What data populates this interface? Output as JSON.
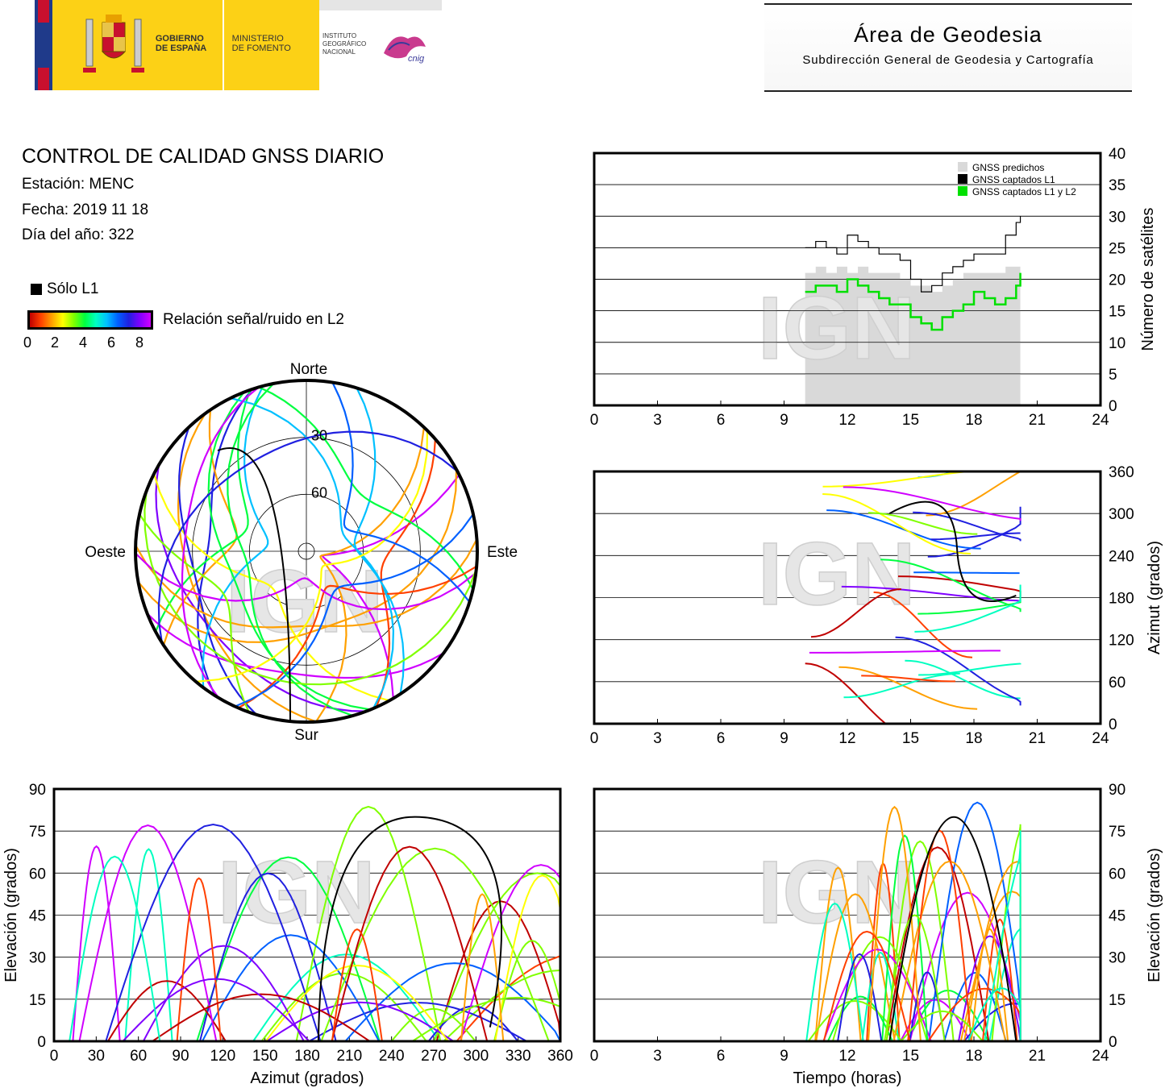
{
  "header": {
    "gov_line1": "GOBIERNO",
    "gov_line2": "DE ESPAÑA",
    "ministry_line1": "MINISTERIO",
    "ministry_line2": "DE FOMENTO",
    "ign_line1": "INSTITUTO",
    "ign_line2": "GEOGRÁFICO",
    "ign_line3": "NACIONAL",
    "cnig": "cnig",
    "area_title": "Área de Geodesia",
    "area_subtitle": "Subdirección General de Geodesia y Cartografía"
  },
  "report": {
    "title": "CONTROL DE CALIDAD GNSS DIARIO",
    "station": "Estación: MENC",
    "date": "Fecha: 2019 11 18",
    "doy": "Día del año: 322",
    "legend_l1": "Sólo L1",
    "colorbar_label": "Relación señal/ruido en L2",
    "colorbar_ticks": [
      "0",
      "2",
      "4",
      "6",
      "8"
    ]
  },
  "watermark": "IGN",
  "colors": {
    "predicted": "#d9d9d9",
    "l1": "#000000",
    "l1l2": "#00e000",
    "snr_scale": [
      "#c00000",
      "#ff4000",
      "#ffa000",
      "#ffff00",
      "#80ff00",
      "#00ff40",
      "#00ffc0",
      "#00c0ff",
      "#0060ff",
      "#2020e0",
      "#8000ff",
      "#d000ff"
    ]
  },
  "chart_data": [
    {
      "id": "satellite-count",
      "type": "line",
      "ylabel": "Número de satélites",
      "xlabel": "",
      "xlim": [
        0,
        24
      ],
      "ylim": [
        0,
        40
      ],
      "xticks": [
        "0",
        "3",
        "6",
        "9",
        "12",
        "15",
        "18",
        "21",
        "24"
      ],
      "yticks": [
        "0",
        "5",
        "10",
        "15",
        "20",
        "25",
        "30",
        "35",
        "40"
      ],
      "legend": [
        "GNSS predichos",
        "GNSS captados L1",
        "GNSS captados L1 y L2"
      ],
      "legend_position": "top-right",
      "series": [
        {
          "name": "GNSS predichos",
          "type": "area",
          "x": [
            10,
            10.5,
            11,
            11.5,
            12,
            12.5,
            13,
            13.5,
            14,
            14.5,
            15,
            15.5,
            16,
            16.5,
            17,
            17.5,
            18,
            18.5,
            19,
            19.5,
            20,
            20.2
          ],
          "y": [
            21,
            22,
            21,
            22,
            21,
            22,
            21,
            21,
            21,
            20,
            19,
            19,
            18,
            19,
            20,
            21,
            21,
            21,
            21,
            22,
            22,
            23
          ]
        },
        {
          "name": "GNSS captados L1",
          "x": [
            10,
            10.5,
            11,
            11.5,
            12,
            12.5,
            13,
            13.5,
            14,
            14.5,
            15,
            15.5,
            16,
            16.5,
            17,
            17.5,
            18,
            18.5,
            19,
            19.5,
            20,
            20.2
          ],
          "y": [
            25,
            26,
            25,
            24,
            27,
            26,
            25,
            24,
            24,
            23,
            20,
            18,
            19,
            21,
            22,
            23,
            24,
            24,
            24,
            27,
            29,
            30
          ]
        },
        {
          "name": "GNSS captados L1 y L2",
          "x": [
            10,
            10.5,
            11,
            11.5,
            12,
            12.5,
            13,
            13.5,
            14,
            14.5,
            15,
            15.5,
            16,
            16.5,
            17,
            17.5,
            18,
            18.5,
            19,
            19.5,
            20,
            20.2
          ],
          "y": [
            18,
            19,
            19,
            18,
            20,
            19,
            18,
            17,
            16,
            16,
            14,
            13,
            12,
            14,
            15,
            16,
            18,
            17,
            16,
            17,
            19,
            21
          ]
        }
      ]
    },
    {
      "id": "skyplot",
      "type": "scatter",
      "title": "",
      "labels": {
        "north": "Norte",
        "south": "Sur",
        "east": "Este",
        "west": "Oeste",
        "ring30": "30",
        "ring60": "60"
      }
    },
    {
      "id": "azimuth-vs-time",
      "type": "scatter",
      "ylabel": "Azimut (grados)",
      "xlim": [
        0,
        24
      ],
      "ylim": [
        0,
        360
      ],
      "xticks": [
        "0",
        "3",
        "6",
        "9",
        "12",
        "15",
        "18",
        "21",
        "24"
      ],
      "yticks": [
        "0",
        "60",
        "120",
        "180",
        "240",
        "300",
        "360"
      ]
    },
    {
      "id": "elevation-vs-azimuth",
      "type": "scatter",
      "xlabel": "Azimut (grados)",
      "ylabel": "Elevación (grados)",
      "xlim": [
        0,
        360
      ],
      "ylim": [
        0,
        90
      ],
      "xticks": [
        "0",
        "30",
        "60",
        "90",
        "120",
        "150",
        "180",
        "210",
        "240",
        "270",
        "300",
        "330",
        "360"
      ],
      "yticks": [
        "0",
        "15",
        "30",
        "45",
        "60",
        "75",
        "90"
      ]
    },
    {
      "id": "elevation-vs-time",
      "type": "scatter",
      "xlabel": "Tiempo (horas)",
      "ylabel": "Elevación (grados)",
      "xlim": [
        0,
        24
      ],
      "ylim": [
        0,
        90
      ],
      "xticks": [
        "0",
        "3",
        "6",
        "9",
        "12",
        "15",
        "18",
        "21",
        "24"
      ],
      "yticks": [
        "0",
        "15",
        "30",
        "45",
        "60",
        "75",
        "90"
      ]
    }
  ]
}
